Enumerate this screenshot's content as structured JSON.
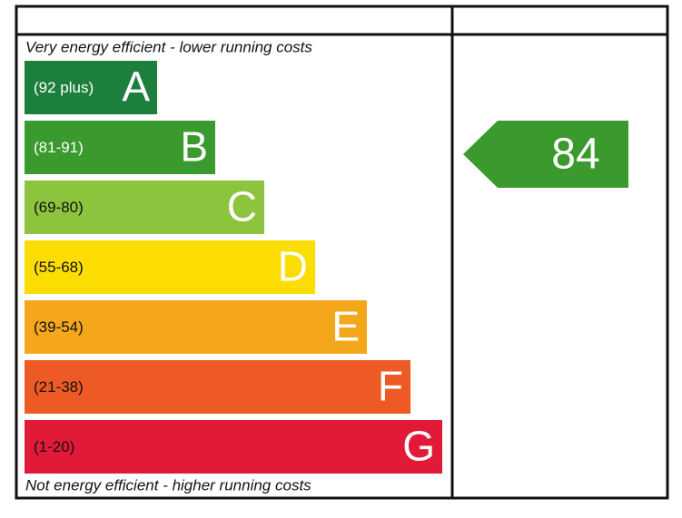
{
  "top_note": "Very energy efficient - lower running costs",
  "bottom_note": "Not energy efficient - higher running costs",
  "bands": [
    {
      "range": "(92 plus)",
      "letter": "A",
      "color": "#1c7f3c",
      "text_color": "#ffffff"
    },
    {
      "range": "(81-91)",
      "letter": "B",
      "color": "#3b9a2d",
      "text_color": "#ffffff"
    },
    {
      "range": "(69-80)",
      "letter": "C",
      "color": "#8cc43e",
      "text_color": "#111111"
    },
    {
      "range": "(55-68)",
      "letter": "D",
      "color": "#fbdc03",
      "text_color": "#111111"
    },
    {
      "range": "(39-54)",
      "letter": "E",
      "color": "#f4a71b",
      "text_color": "#111111"
    },
    {
      "range": "(21-38)",
      "letter": "F",
      "color": "#ee5a25",
      "text_color": "#111111"
    },
    {
      "range": "(1-20)",
      "letter": "G",
      "color": "#e11b37",
      "text_color": "#111111"
    }
  ],
  "current_rating": {
    "value": 84,
    "color": "#3b9a2d"
  }
}
